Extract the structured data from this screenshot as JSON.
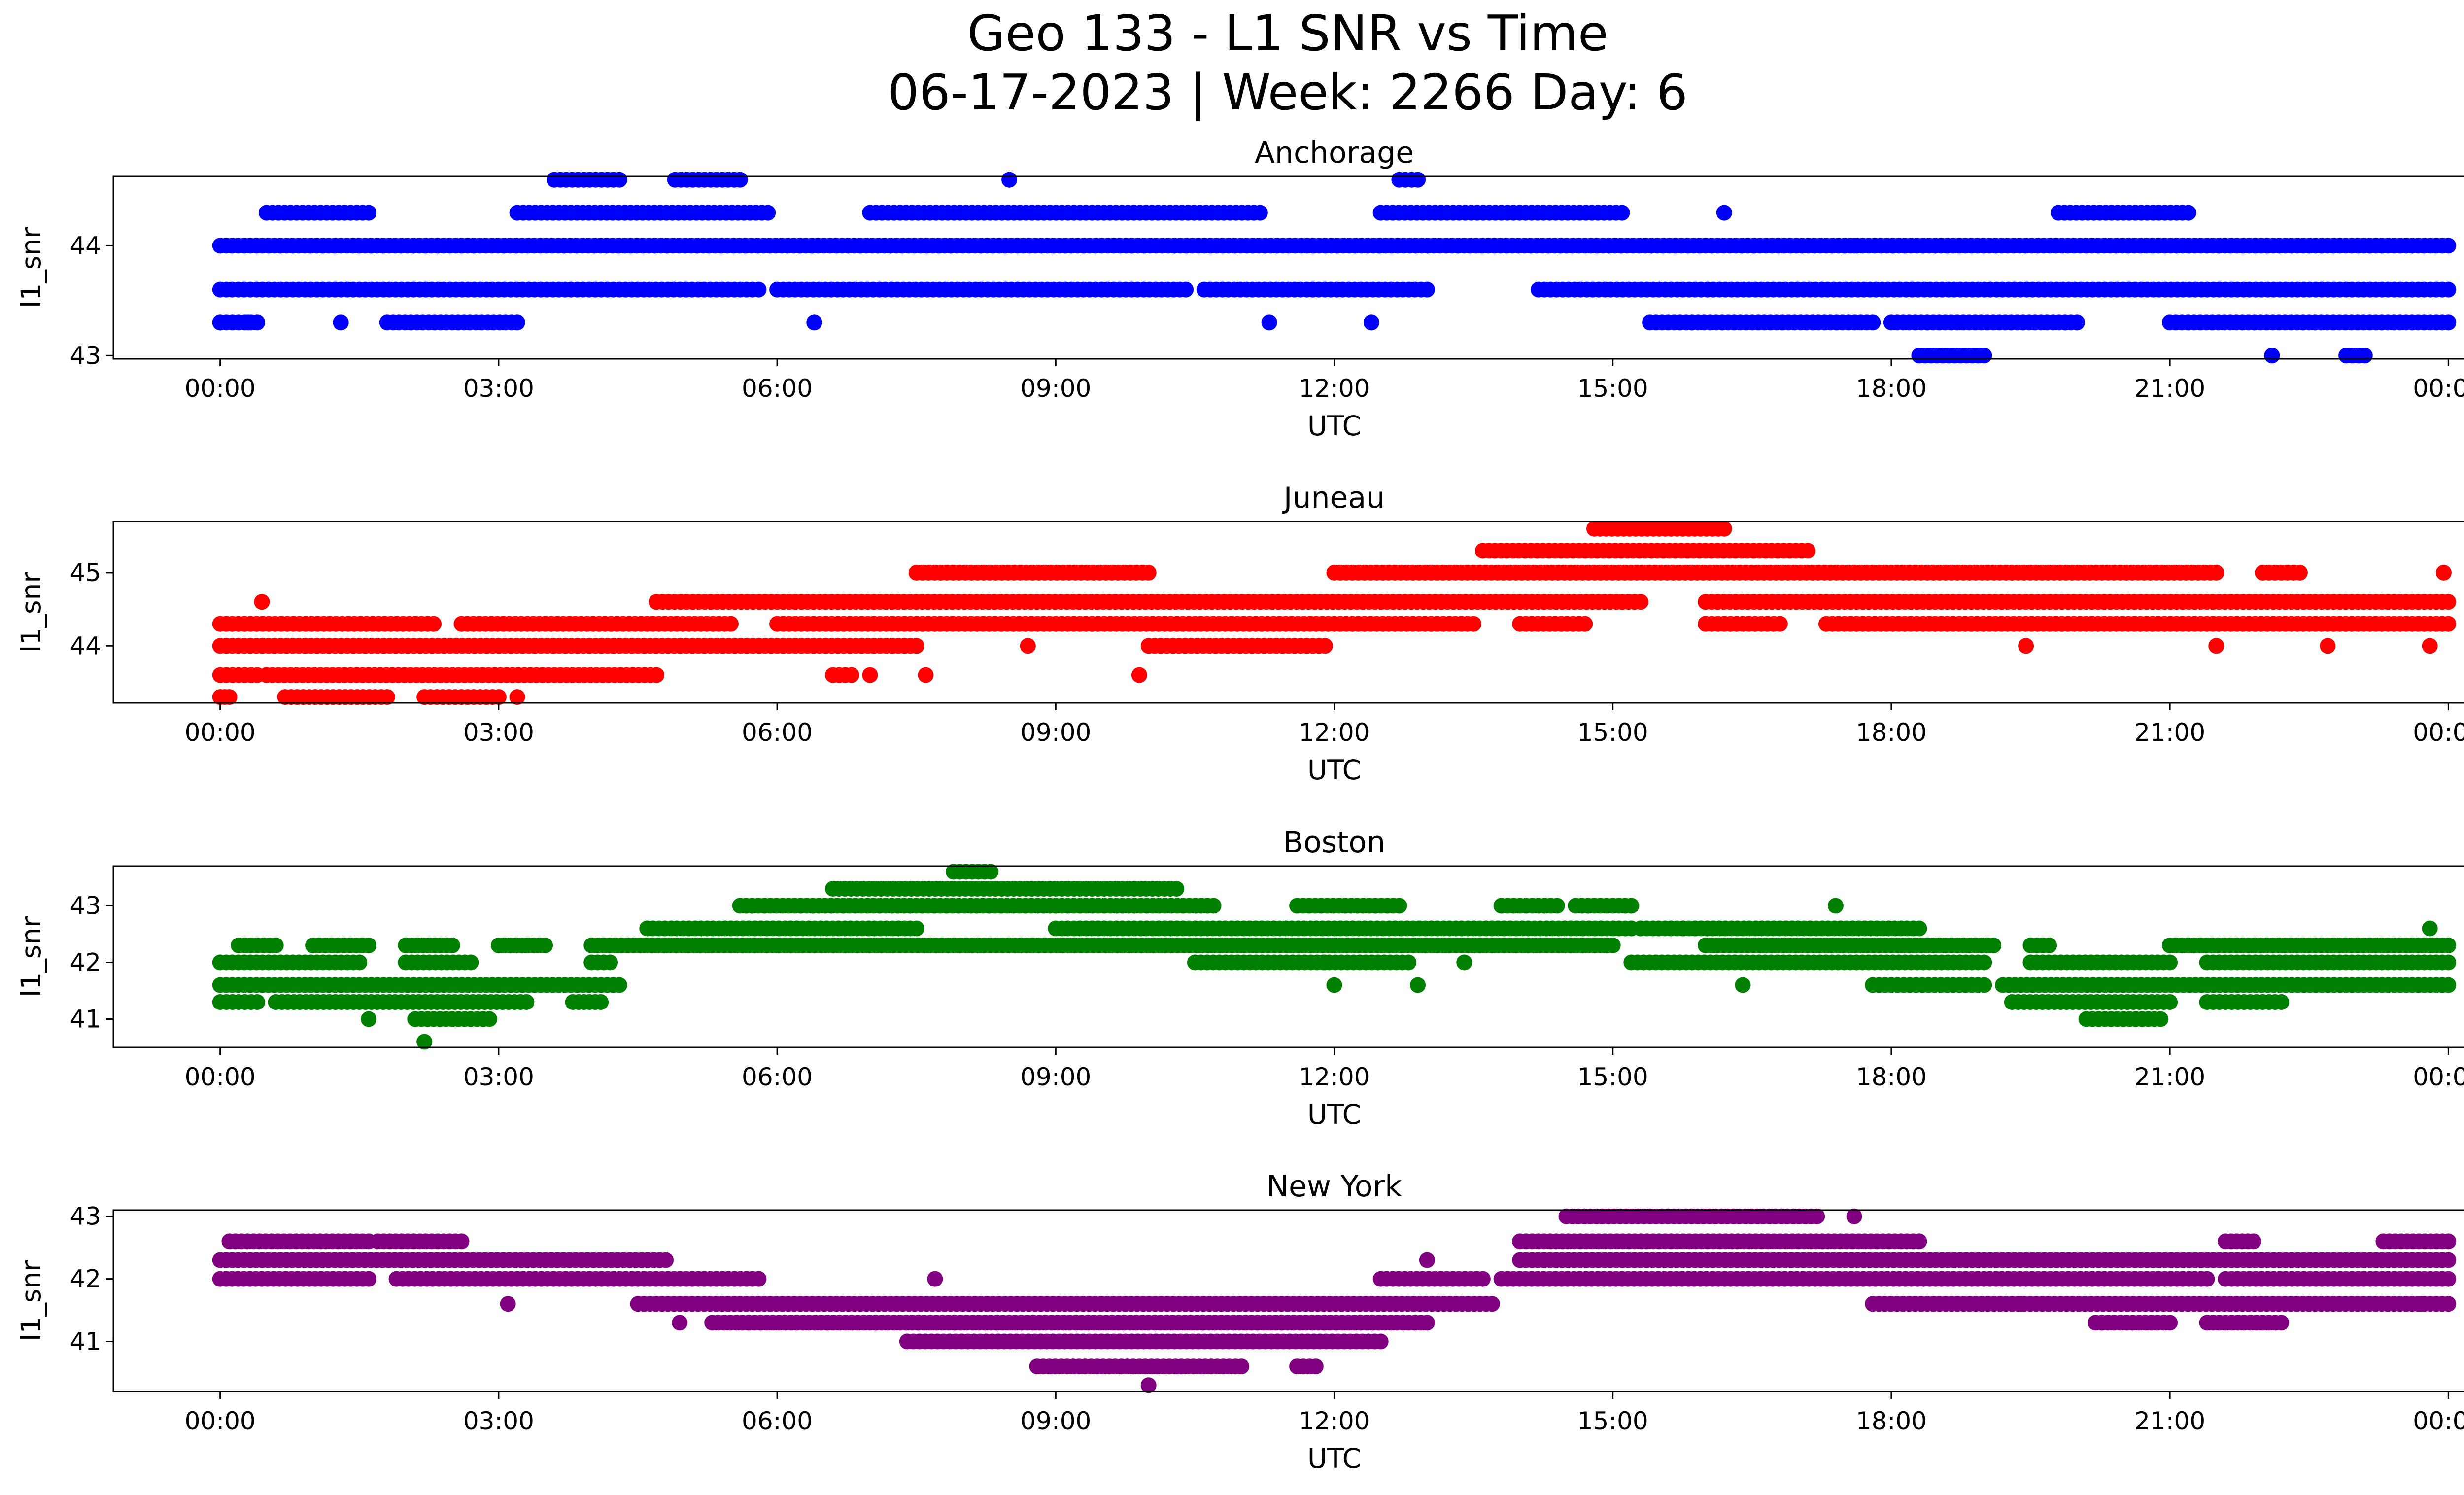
{
  "figure": {
    "title_line1": "Geo 133 - L1 SNR vs Time",
    "title_line2": "06-17-2023 | Week: 2266 Day: 6"
  },
  "chart_data": [
    {
      "type": "scatter",
      "title": "Anchorage",
      "xlabel": "UTC",
      "ylabel": "l1_snr",
      "color": "#0000ff",
      "xlim_hours": [
        -1.15,
        25.15
      ],
      "ylim": [
        42.97,
        44.63
      ],
      "yticks": [
        43,
        44
      ],
      "xtick_labels": [
        "00:00",
        "03:00",
        "06:00",
        "09:00",
        "12:00",
        "15:00",
        "18:00",
        "21:00",
        "00:00"
      ],
      "series": [
        {
          "y": 44.0,
          "segments": [
            [
              0.0,
              24.0
            ]
          ]
        },
        {
          "y": 43.6,
          "segments": [
            [
              0.0,
              5.8
            ],
            [
              6.0,
              10.4
            ],
            [
              10.6,
              13.0
            ],
            [
              14.2,
              24.0
            ]
          ]
        },
        {
          "y": 43.3,
          "segments": [
            [
              0.0,
              0.4
            ],
            [
              1.8,
              3.2
            ],
            [
              15.4,
              17.8
            ],
            [
              18.0,
              20.0
            ],
            [
              21.0,
              24.0
            ]
          ]
        },
        {
          "y": 44.3,
          "segments": [
            [
              0.5,
              1.6
            ],
            [
              3.2,
              5.9
            ],
            [
              7.0,
              11.2
            ],
            [
              12.5,
              15.1
            ],
            [
              19.8,
              21.2
            ]
          ]
        },
        {
          "y": 44.6,
          "segments": [
            [
              3.6,
              4.3
            ],
            [
              4.9,
              5.6
            ],
            [
              12.7,
              12.9
            ]
          ]
        },
        {
          "y": 43.0,
          "segments": [
            [
              18.3,
              19.0
            ],
            [
              22.9,
              23.1
            ]
          ]
        }
      ],
      "points": [
        [
          8.5,
          44.6
        ],
        [
          6.4,
          43.3
        ],
        [
          11.3,
          43.3
        ],
        [
          12.4,
          43.3
        ],
        [
          0.3,
          43.3
        ],
        [
          1.3,
          43.3
        ],
        [
          22.1,
          43.0
        ],
        [
          16.2,
          44.3
        ],
        [
          17.6,
          44.0
        ]
      ]
    },
    {
      "type": "scatter",
      "title": "Juneau",
      "xlabel": "UTC",
      "ylabel": "l1_snr",
      "color": "#ff0000",
      "xlim_hours": [
        -1.15,
        25.15
      ],
      "ylim": [
        43.22,
        45.7
      ],
      "yticks": [
        44,
        45
      ],
      "xtick_labels": [
        "00:00",
        "03:00",
        "06:00",
        "09:00",
        "12:00",
        "15:00",
        "18:00",
        "21:00",
        "00:00"
      ],
      "series": [
        {
          "y": 44.3,
          "segments": [
            [
              0.0,
              2.3
            ],
            [
              2.6,
              5.5
            ],
            [
              6.0,
              13.5
            ],
            [
              14.0,
              14.7
            ],
            [
              16.0,
              16.8
            ],
            [
              17.3,
              24.0
            ]
          ]
        },
        {
          "y": 44.0,
          "segments": [
            [
              0.0,
              7.5
            ],
            [
              10.0,
              11.9
            ]
          ]
        },
        {
          "y": 43.6,
          "segments": [
            [
              0.0,
              0.4
            ],
            [
              0.5,
              4.7
            ],
            [
              6.6,
              6.8
            ]
          ]
        },
        {
          "y": 43.3,
          "segments": [
            [
              0.0,
              0.1
            ],
            [
              0.7,
              1.8
            ],
            [
              2.2,
              3.0
            ]
          ]
        },
        {
          "y": 44.6,
          "segments": [
            [
              4.7,
              15.3
            ],
            [
              16.0,
              24.0
            ]
          ]
        },
        {
          "y": 45.0,
          "segments": [
            [
              7.5,
              10.0
            ],
            [
              12.0,
              19.3
            ],
            [
              19.3,
              21.5
            ],
            [
              22.0,
              22.4
            ]
          ]
        },
        {
          "y": 45.3,
          "segments": [
            [
              13.6,
              17.1
            ]
          ]
        },
        {
          "y": 45.6,
          "segments": [
            [
              14.8,
              16.2
            ]
          ]
        }
      ],
      "points": [
        [
          0.45,
          44.6
        ],
        [
          3.2,
          43.3
        ],
        [
          7.0,
          43.6
        ],
        [
          7.6,
          43.6
        ],
        [
          8.7,
          44.0
        ],
        [
          9.9,
          43.6
        ],
        [
          15.1,
          44.6
        ],
        [
          19.45,
          44.0
        ],
        [
          21.5,
          44.0
        ],
        [
          22.7,
          44.0
        ],
        [
          23.8,
          44.0
        ],
        [
          23.95,
          45.0
        ]
      ]
    },
    {
      "type": "scatter",
      "title": "Boston",
      "xlabel": "UTC",
      "ylabel": "l1_snr",
      "color": "#008000",
      "xlim_hours": [
        -1.15,
        25.15
      ],
      "ylim": [
        40.5,
        43.7
      ],
      "yticks": [
        41,
        42,
        43
      ],
      "xtick_labels": [
        "00:00",
        "03:00",
        "06:00",
        "09:00",
        "12:00",
        "15:00",
        "18:00",
        "21:00",
        "00:00"
      ],
      "series": [
        {
          "y": 42.0,
          "segments": [
            [
              0.0,
              1.5
            ],
            [
              2.0,
              2.7
            ],
            [
              4.0,
              4.2
            ],
            [
              10.5,
              12.8
            ],
            [
              15.2,
              19.0
            ],
            [
              19.5,
              21.0
            ],
            [
              21.4,
              24.0
            ]
          ]
        },
        {
          "y": 41.6,
          "segments": [
            [
              0.0,
              4.3
            ],
            [
              17.8,
              19.0
            ],
            [
              19.2,
              24.0
            ]
          ]
        },
        {
          "y": 41.3,
          "segments": [
            [
              0.0,
              0.4
            ],
            [
              0.6,
              3.3
            ],
            [
              3.8,
              4.1
            ],
            [
              19.3,
              21.0
            ],
            [
              21.4,
              22.2
            ]
          ]
        },
        {
          "y": 41.0,
          "segments": [
            [
              2.1,
              2.9
            ],
            [
              20.1,
              20.9
            ]
          ]
        },
        {
          "y": 42.3,
          "segments": [
            [
              0.2,
              0.6
            ],
            [
              1.0,
              1.6
            ],
            [
              2.0,
              2.5
            ],
            [
              3.0,
              3.5
            ],
            [
              4.0,
              15.0
            ],
            [
              16.0,
              19.1
            ],
            [
              19.5,
              19.7
            ],
            [
              21.0,
              24.0
            ]
          ]
        },
        {
          "y": 42.6,
          "segments": [
            [
              4.6,
              7.5
            ],
            [
              9.0,
              15.2
            ],
            [
              15.3,
              18.3
            ]
          ]
        },
        {
          "y": 43.0,
          "segments": [
            [
              5.6,
              10.7
            ],
            [
              11.6,
              12.7
            ],
            [
              13.8,
              14.4
            ],
            [
              14.6,
              15.2
            ]
          ]
        },
        {
          "y": 43.3,
          "segments": [
            [
              6.6,
              10.3
            ]
          ]
        },
        {
          "y": 43.6,
          "segments": [
            [
              7.9,
              8.3
            ]
          ]
        }
      ],
      "points": [
        [
          1.6,
          41.0
        ],
        [
          2.2,
          40.6
        ],
        [
          11.9,
          42.0
        ],
        [
          12.0,
          41.6
        ],
        [
          12.9,
          41.6
        ],
        [
          13.4,
          42.0
        ],
        [
          16.4,
          41.6
        ],
        [
          17.4,
          43.0
        ],
        [
          23.8,
          42.6
        ],
        [
          10.7,
          42.3
        ]
      ]
    },
    {
      "type": "scatter",
      "title": "New York",
      "xlabel": "UTC",
      "ylabel": "l1_snr",
      "color": "#800080",
      "xlim_hours": [
        -1.15,
        25.15
      ],
      "ylim": [
        40.2,
        43.1
      ],
      "yticks": [
        41,
        42,
        43
      ],
      "xtick_labels": [
        "00:00",
        "03:00",
        "06:00",
        "09:00",
        "12:00",
        "15:00",
        "18:00",
        "21:00",
        "00:00"
      ],
      "series": [
        {
          "y": 42.3,
          "segments": [
            [
              0.0,
              4.8
            ],
            [
              14.0,
              24.0
            ]
          ]
        },
        {
          "y": 42.0,
          "segments": [
            [
              0.0,
              1.6
            ],
            [
              1.9,
              5.8
            ],
            [
              12.5,
              13.6
            ],
            [
              13.8,
              21.4
            ],
            [
              21.6,
              24.0
            ]
          ]
        },
        {
          "y": 42.6,
          "segments": [
            [
              0.1,
              1.6
            ],
            [
              1.7,
              2.6
            ],
            [
              14.0,
              18.3
            ],
            [
              21.6,
              21.9
            ],
            [
              23.3,
              24.0
            ]
          ]
        },
        {
          "y": 41.6,
          "segments": [
            [
              4.5,
              13.7
            ],
            [
              17.8,
              24.0
            ]
          ]
        },
        {
          "y": 41.3,
          "segments": [
            [
              5.3,
              13.0
            ],
            [
              20.2,
              21.0
            ],
            [
              21.4,
              22.2
            ]
          ]
        },
        {
          "y": 41.0,
          "segments": [
            [
              7.4,
              12.5
            ]
          ]
        },
        {
          "y": 40.6,
          "segments": [
            [
              8.8,
              11.0
            ],
            [
              11.6,
              11.8
            ]
          ]
        },
        {
          "y": 43.0,
          "segments": [
            [
              14.5,
              17.2
            ]
          ]
        }
      ],
      "points": [
        [
          10.0,
          40.3
        ],
        [
          4.95,
          41.3
        ],
        [
          7.7,
          42.0
        ],
        [
          3.1,
          41.6
        ],
        [
          13.0,
          42.3
        ],
        [
          17.6,
          43.0
        ],
        [
          23.7,
          41.6
        ],
        [
          19.4,
          41.6
        ]
      ]
    }
  ]
}
